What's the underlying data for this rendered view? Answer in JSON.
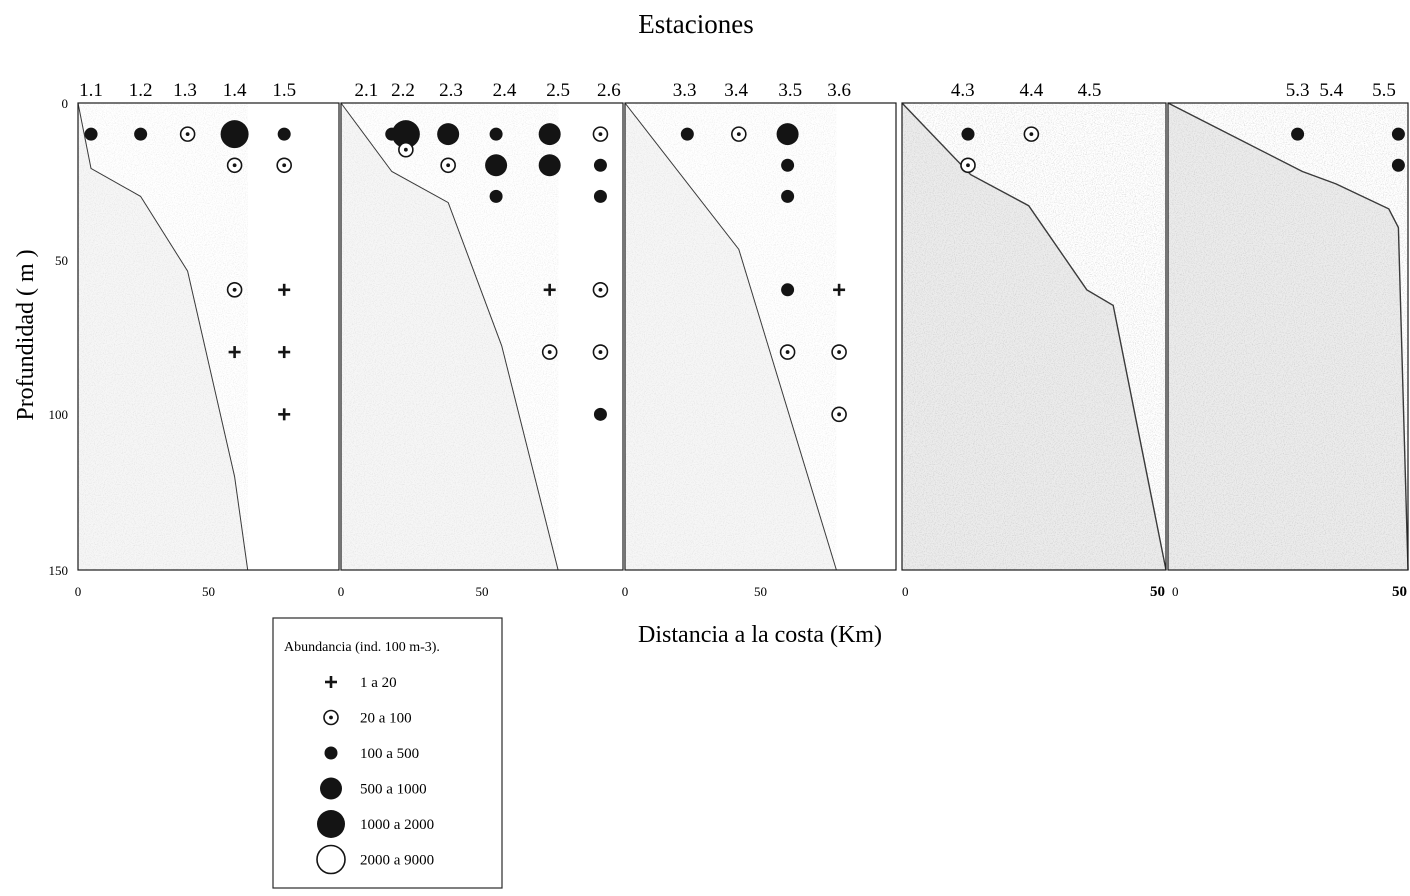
{
  "chart_data": {
    "type": "scatter",
    "title": "Estaciones",
    "xlabel": "Distancia a la costa (Km)",
    "ylabel": "Profundidad ( m )",
    "ylim": [
      0,
      150
    ],
    "y_ticks": [
      "0",
      "50",
      "100",
      "150"
    ],
    "grid": false,
    "legend": {
      "title": "Abundancia (ind. 100 m-3).",
      "position": "bottom-left",
      "entries": [
        {
          "class": "c1",
          "label": "1  a  20"
        },
        {
          "class": "c2",
          "label": "20  a  100"
        },
        {
          "class": "c3",
          "label": "100  a  500"
        },
        {
          "class": "c4",
          "label": "500  a  1000"
        },
        {
          "class": "c5",
          "label": "1000  a  2000"
        },
        {
          "class": "c6",
          "label": "2000  a  9000"
        }
      ]
    },
    "panels": [
      {
        "name": "1",
        "xlim": [
          0,
          100
        ],
        "x_ticks": [
          "0",
          "50"
        ],
        "stations": [
          {
            "label": "1.1",
            "x": 5
          },
          {
            "label": "1.2",
            "x": 24
          },
          {
            "label": "1.3",
            "x": 41
          },
          {
            "label": "1.4",
            "x": 60
          },
          {
            "label": "1.5",
            "x": 79
          }
        ],
        "bottom_profile": [
          [
            0,
            0
          ],
          [
            5,
            21
          ],
          [
            24,
            30
          ],
          [
            42,
            54
          ],
          [
            60,
            120
          ],
          [
            65,
            150
          ]
        ],
        "samples": [
          {
            "station": "1.1",
            "x": 5,
            "depth": 10,
            "class": "c3"
          },
          {
            "station": "1.2",
            "x": 24,
            "depth": 10,
            "class": "c3"
          },
          {
            "station": "1.3",
            "x": 42,
            "depth": 10,
            "class": "c2"
          },
          {
            "station": "1.4",
            "x": 60,
            "depth": 10,
            "class": "c5"
          },
          {
            "station": "1.4",
            "x": 60,
            "depth": 20,
            "class": "c2"
          },
          {
            "station": "1.4",
            "x": 60,
            "depth": 60,
            "class": "c2"
          },
          {
            "station": "1.4",
            "x": 60,
            "depth": 80,
            "class": "c1"
          },
          {
            "station": "1.5",
            "x": 79,
            "depth": 10,
            "class": "c3"
          },
          {
            "station": "1.5",
            "x": 79,
            "depth": 20,
            "class": "c2"
          },
          {
            "station": "1.5",
            "x": 79,
            "depth": 60,
            "class": "c1"
          },
          {
            "station": "1.5",
            "x": 79,
            "depth": 80,
            "class": "c1"
          },
          {
            "station": "1.5",
            "x": 79,
            "depth": 100,
            "class": "c1"
          }
        ]
      },
      {
        "name": "2",
        "xlim": [
          0,
          100
        ],
        "x_ticks": [
          "0",
          "50"
        ],
        "stations": [
          {
            "label": "2.1",
            "x": 9
          },
          {
            "label": "2.2",
            "x": 22
          },
          {
            "label": "2.3",
            "x": 39
          },
          {
            "label": "2.4",
            "x": 58
          },
          {
            "label": "2.5",
            "x": 77
          },
          {
            "label": "2.6",
            "x": 95
          }
        ],
        "bottom_profile": [
          [
            0,
            0
          ],
          [
            18,
            22
          ],
          [
            38,
            32
          ],
          [
            57,
            78
          ],
          [
            77,
            150
          ]
        ],
        "samples": [
          {
            "station": "2.2",
            "x": 18,
            "depth": 10,
            "class": "c3"
          },
          {
            "station": "2.2",
            "x": 23,
            "depth": 10,
            "class": "c5"
          },
          {
            "station": "2.2",
            "x": 23,
            "depth": 15,
            "class": "c2"
          },
          {
            "station": "2.3",
            "x": 38,
            "depth": 10,
            "class": "c4"
          },
          {
            "station": "2.3",
            "x": 38,
            "depth": 20,
            "class": "c2"
          },
          {
            "station": "2.4",
            "x": 55,
            "depth": 10,
            "class": "c3"
          },
          {
            "station": "2.4",
            "x": 55,
            "depth": 20,
            "class": "c4"
          },
          {
            "station": "2.4",
            "x": 55,
            "depth": 30,
            "class": "c3"
          },
          {
            "station": "2.5",
            "x": 74,
            "depth": 10,
            "class": "c4"
          },
          {
            "station": "2.5",
            "x": 74,
            "depth": 20,
            "class": "c4"
          },
          {
            "station": "2.5",
            "x": 74,
            "depth": 60,
            "class": "c1"
          },
          {
            "station": "2.5",
            "x": 74,
            "depth": 80,
            "class": "c2"
          },
          {
            "station": "2.6",
            "x": 92,
            "depth": 10,
            "class": "c2"
          },
          {
            "station": "2.6",
            "x": 92,
            "depth": 20,
            "class": "c3"
          },
          {
            "station": "2.6",
            "x": 92,
            "depth": 30,
            "class": "c3"
          },
          {
            "station": "2.6",
            "x": 92,
            "depth": 60,
            "class": "c2"
          },
          {
            "station": "2.6",
            "x": 92,
            "depth": 80,
            "class": "c2"
          },
          {
            "station": "2.6",
            "x": 92,
            "depth": 100,
            "class": "c3"
          }
        ]
      },
      {
        "name": "3",
        "xlim": [
          0,
          100
        ],
        "x_ticks": [
          "0",
          "50"
        ],
        "stations": [
          {
            "label": "3.3",
            "x": 22
          },
          {
            "label": "3.4",
            "x": 41
          },
          {
            "label": "3.5",
            "x": 61
          },
          {
            "label": "3.6",
            "x": 79
          }
        ],
        "bottom_profile": [
          [
            0,
            0
          ],
          [
            42,
            47
          ],
          [
            78,
            150
          ]
        ],
        "samples": [
          {
            "station": "3.3",
            "x": 23,
            "depth": 10,
            "class": "c3"
          },
          {
            "station": "3.4",
            "x": 42,
            "depth": 10,
            "class": "c2"
          },
          {
            "station": "3.5",
            "x": 60,
            "depth": 10,
            "class": "c4"
          },
          {
            "station": "3.5",
            "x": 60,
            "depth": 20,
            "class": "c3"
          },
          {
            "station": "3.5",
            "x": 60,
            "depth": 30,
            "class": "c3"
          },
          {
            "station": "3.5",
            "x": 60,
            "depth": 60,
            "class": "c3"
          },
          {
            "station": "3.5",
            "x": 60,
            "depth": 80,
            "class": "c2"
          },
          {
            "station": "3.6",
            "x": 79,
            "depth": 60,
            "class": "c1"
          },
          {
            "station": "3.6",
            "x": 79,
            "depth": 80,
            "class": "c2"
          },
          {
            "station": "3.6",
            "x": 79,
            "depth": 100,
            "class": "c2"
          }
        ]
      },
      {
        "name": "4",
        "xlim": [
          0,
          50
        ],
        "x_ticks": [
          "0",
          "50"
        ],
        "stations": [
          {
            "label": "4.3",
            "x": 11.5
          },
          {
            "label": "4.4",
            "x": 24.5
          },
          {
            "label": "4.5",
            "x": 35.5
          }
        ],
        "bottom_profile": [
          [
            0,
            0
          ],
          [
            13,
            23
          ],
          [
            24,
            33
          ],
          [
            35,
            60
          ],
          [
            40,
            65
          ],
          [
            50,
            150
          ]
        ],
        "samples": [
          {
            "station": "4.3",
            "x": 12.5,
            "depth": 10,
            "class": "c3"
          },
          {
            "station": "4.3",
            "x": 12.5,
            "depth": 20,
            "class": "c2"
          },
          {
            "station": "4.4",
            "x": 24.5,
            "depth": 10,
            "class": "c2"
          }
        ]
      },
      {
        "name": "5",
        "xlim": [
          0,
          50
        ],
        "x_ticks": [
          "0",
          "50"
        ],
        "stations": [
          {
            "label": "5.3",
            "x": 27
          },
          {
            "label": "5.4",
            "x": 34
          },
          {
            "label": "5.5",
            "x": 45
          }
        ],
        "bottom_profile": [
          [
            0,
            0
          ],
          [
            28,
            22
          ],
          [
            35,
            26
          ],
          [
            46,
            34
          ],
          [
            48,
            40
          ],
          [
            50,
            150
          ]
        ],
        "samples": [
          {
            "station": "5.3",
            "x": 27,
            "depth": 10,
            "class": "c3"
          },
          {
            "station": "5.5",
            "x": 48,
            "depth": 10,
            "class": "c3"
          },
          {
            "station": "5.5",
            "x": 48,
            "depth": 20,
            "class": "c3"
          }
        ]
      }
    ]
  }
}
